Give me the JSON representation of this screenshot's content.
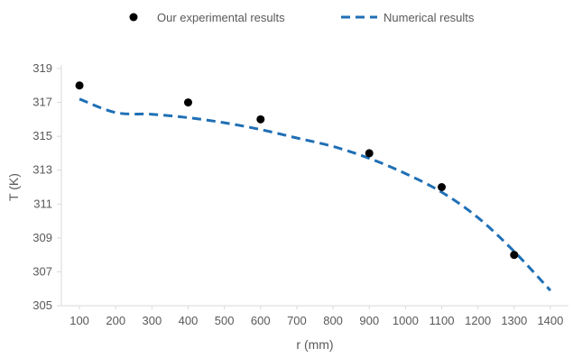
{
  "chart_data": {
    "type": "scatter",
    "title": "",
    "xlabel": "r (mm)",
    "ylabel": "T (K)",
    "xlim": [
      50,
      1450
    ],
    "ylim": [
      305,
      319
    ],
    "x_ticks": [
      100,
      200,
      300,
      400,
      500,
      600,
      700,
      800,
      900,
      1000,
      1100,
      1200,
      1300,
      1400
    ],
    "y_ticks": [
      305,
      307,
      309,
      311,
      313,
      315,
      317,
      319
    ],
    "grid": false,
    "legend_position": "top",
    "series": [
      {
        "name": "Our experimental results",
        "kind": "scatter",
        "color": "#000000",
        "x": [
          100,
          400,
          600,
          900,
          1100,
          1300
        ],
        "y": [
          318,
          317,
          316,
          314,
          312,
          308
        ]
      },
      {
        "name": "Numerical results",
        "kind": "line",
        "style": "dashed",
        "color": "#1f6fb5",
        "x": [
          100,
          200,
          300,
          400,
          500,
          600,
          700,
          800,
          900,
          1000,
          1100,
          1200,
          1300,
          1400
        ],
        "y": [
          317.2,
          316.4,
          316.3,
          316.1,
          315.8,
          315.4,
          314.9,
          314.4,
          313.7,
          312.8,
          311.7,
          310.2,
          308.2,
          305.9
        ]
      }
    ]
  }
}
